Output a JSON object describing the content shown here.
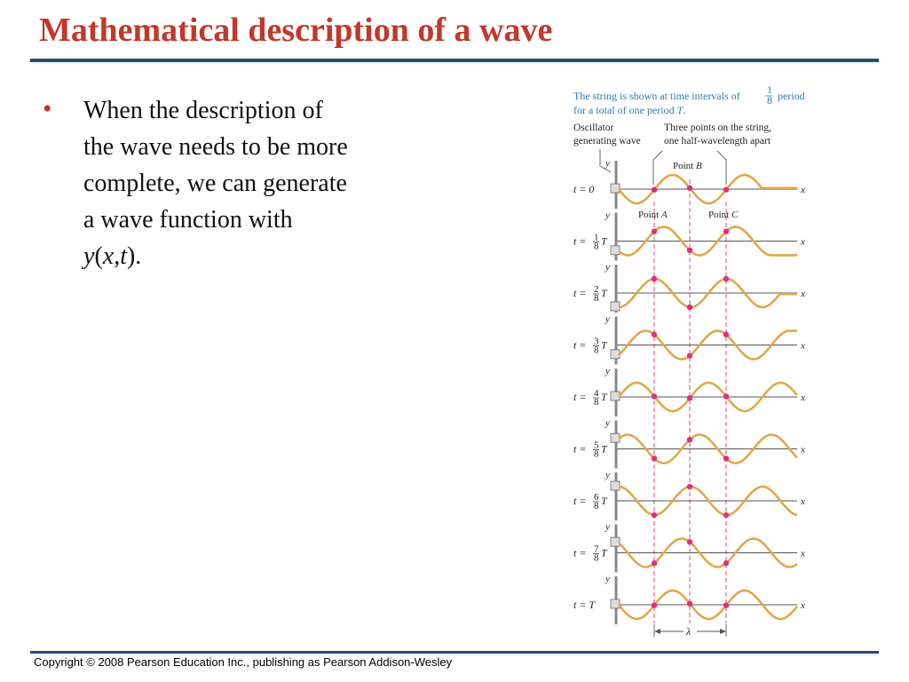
{
  "slide": {
    "title": "Mathematical description of a wave",
    "bullet": {
      "text_before": "When the description of the wave needs to be more complete, we can generate a wave function with ",
      "var_y": "y",
      "paren_open": "(",
      "var_x": "x",
      "comma": ",",
      "var_t": "t",
      "paren_close": ").",
      "marker": "•"
    },
    "footer": "Copyright © 2008 Pearson Education Inc., publishing as Pearson Addison-Wesley"
  },
  "figure": {
    "caption_line1": "The string is shown at time intervals of",
    "caption_frac_num": "1",
    "caption_frac_den": "8",
    "caption_period": "period",
    "caption_line2_a": "for a total of one period ",
    "caption_line2_T": "T",
    "caption_line2_b": ".",
    "oscillator_label_1": "Oscillator",
    "oscillator_label_2": "generating wave",
    "points_label_1": "Three points on the string,",
    "points_label_2": "one half-wavelength apart",
    "point_b_label": "Point ",
    "point_b_letter": "B",
    "point_a_label": "Point ",
    "point_a_letter": "A",
    "point_c_label": "Point ",
    "point_c_letter": "C",
    "axis_y": "y",
    "axis_x": "x",
    "wavelength_symbol": "λ",
    "colors": {
      "wave": "#e0a84a",
      "points": "#e0307a",
      "axis": "#555555",
      "caption": "#2a7ab8"
    },
    "snapshots": [
      {
        "t_label": "t = 0",
        "eighths": 0
      },
      {
        "t_prefix": "t =",
        "num": "1",
        "den": "8",
        "t_suffix": "T",
        "eighths": 1
      },
      {
        "t_prefix": "t =",
        "num": "2",
        "den": "8",
        "t_suffix": "T",
        "eighths": 2
      },
      {
        "t_prefix": "t =",
        "num": "3",
        "den": "8",
        "t_suffix": "T",
        "eighths": 3
      },
      {
        "t_prefix": "t =",
        "num": "4",
        "den": "8",
        "t_suffix": "T",
        "eighths": 4
      },
      {
        "t_prefix": "t =",
        "num": "5",
        "den": "8",
        "t_suffix": "T",
        "eighths": 5
      },
      {
        "t_prefix": "t =",
        "num": "6",
        "den": "8",
        "t_suffix": "T",
        "eighths": 6
      },
      {
        "t_prefix": "t =",
        "num": "7",
        "den": "8",
        "t_suffix": "T",
        "eighths": 7
      },
      {
        "t_label": "t = T",
        "eighths": 8
      }
    ]
  }
}
